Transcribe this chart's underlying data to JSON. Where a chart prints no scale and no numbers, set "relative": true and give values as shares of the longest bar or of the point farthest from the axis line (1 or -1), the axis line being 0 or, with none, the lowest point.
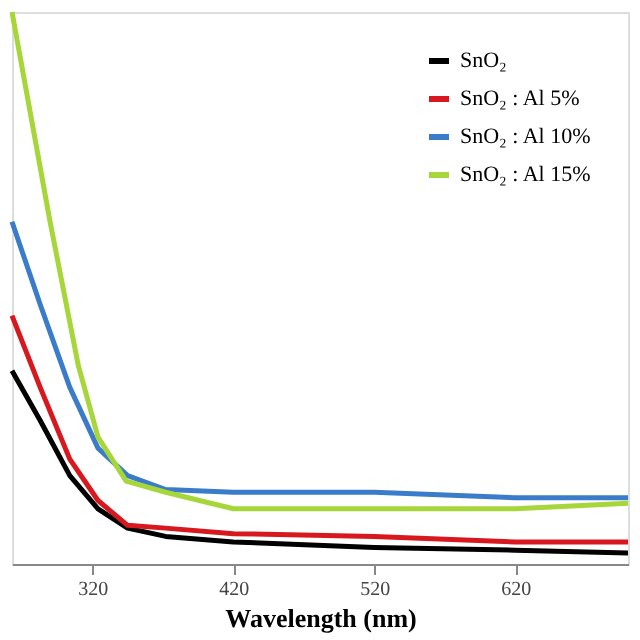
{
  "chart_data": {
    "type": "line",
    "xlabel": "Wavelength (nm)",
    "relative": true,
    "xlim": [
      263,
      700
    ],
    "xticks": [
      320,
      420,
      520,
      620
    ],
    "grid": false,
    "legend": "top right",
    "line_style": "solid",
    "marker": "none",
    "tick_labels": "x",
    "series": [
      {
        "name": "SnO₂",
        "color": "#000000",
        "x": [
          263,
          283,
          304,
          324,
          345,
          372,
          420,
          520,
          620,
          700
        ],
        "values": [
          0.35,
          0.26,
          0.16,
          0.1,
          0.065,
          0.05,
          0.04,
          0.03,
          0.025,
          0.02
        ]
      },
      {
        "name": "SnO₂ : Al 5%",
        "color": "#d7191f",
        "x": [
          263,
          283,
          304,
          324,
          345,
          372,
          420,
          520,
          620,
          700
        ],
        "values": [
          0.45,
          0.32,
          0.19,
          0.115,
          0.07,
          0.065,
          0.055,
          0.05,
          0.04,
          0.04
        ]
      },
      {
        "name": "SnO₂ : Al 10%",
        "color": "#3a7cc9",
        "x": [
          263,
          283,
          304,
          324,
          345,
          372,
          420,
          520,
          620,
          700
        ],
        "values": [
          0.62,
          0.47,
          0.32,
          0.21,
          0.16,
          0.135,
          0.13,
          0.13,
          0.12,
          0.12
        ]
      },
      {
        "name": "SnO₂ : Al 15%",
        "color": "#a6d63a",
        "x": [
          263,
          290,
          310,
          324,
          344,
          372,
          420,
          520,
          620,
          700
        ],
        "values": [
          1.0,
          0.62,
          0.36,
          0.23,
          0.15,
          0.13,
          0.1,
          0.1,
          0.1,
          0.11
        ]
      }
    ]
  }
}
